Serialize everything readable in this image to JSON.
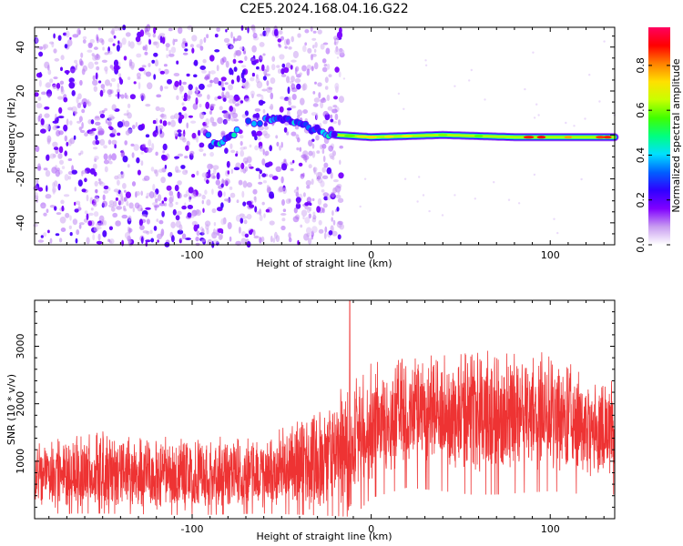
{
  "title": "C2E5.2024.168.04.16.G22",
  "chart_data": [
    {
      "type": "heatmap",
      "xlabel": "Height of straight line (km)",
      "ylabel": "Frequency (Hz)",
      "xlim": [
        -188,
        136
      ],
      "ylim": [
        -50,
        49
      ],
      "x_ticks": [
        -100,
        0,
        100
      ],
      "y_ticks": [
        -40,
        -20,
        0,
        20,
        40
      ],
      "colorbar": {
        "label": "Normalized spectral amplitude",
        "range": [
          0,
          0.97
        ],
        "ticks": [
          "0.0",
          "0.2",
          "0.4",
          "0.6",
          "0.8"
        ],
        "colormap": [
          "#ffffff",
          "#c89cf0",
          "#8000ff",
          "#3000ff",
          "#0060ff",
          "#00e0ff",
          "#00ff80",
          "#40ff00",
          "#c8ff00",
          "#ffe000",
          "#ff8000",
          "#ff0000",
          "#ff0060"
        ]
      },
      "features": {
        "noise_region_km": [
          -188,
          -20
        ],
        "signal_track": [
          {
            "x": -90,
            "f": -6
          },
          {
            "x": -70,
            "f": 5
          },
          {
            "x": -50,
            "f": 8
          },
          {
            "x": -35,
            "f": 3
          },
          {
            "x": -20,
            "f": 0
          },
          {
            "x": 0,
            "f": -1
          },
          {
            "x": 40,
            "f": 0
          },
          {
            "x": 80,
            "f": -1
          },
          {
            "x": 136,
            "f": -1
          }
        ]
      }
    },
    {
      "type": "line",
      "xlabel": "Height of straight line (km)",
      "ylabel": "SNR (10 * v/v)",
      "xlim": [
        -188,
        136
      ],
      "ylim": [
        0,
        3800
      ],
      "x_ticks": [
        -100,
        0,
        100
      ],
      "y_ticks": [
        1000,
        2000,
        3000
      ],
      "color": "#ee3333",
      "envelope": [
        {
          "x": -188,
          "lo": 150,
          "hi": 1300
        },
        {
          "x": -150,
          "lo": 150,
          "hi": 1450
        },
        {
          "x": -100,
          "lo": 100,
          "hi": 1350
        },
        {
          "x": -60,
          "lo": 150,
          "hi": 1400
        },
        {
          "x": -30,
          "lo": 100,
          "hi": 1900
        },
        {
          "x": -10,
          "lo": 50,
          "hi": 2300
        },
        {
          "x": 0,
          "lo": 600,
          "hi": 2600
        },
        {
          "x": 20,
          "lo": 900,
          "hi": 2900
        },
        {
          "x": 40,
          "lo": 800,
          "hi": 2700
        },
        {
          "x": 55,
          "lo": 700,
          "hi": 3100
        },
        {
          "x": 70,
          "lo": 700,
          "hi": 2700
        },
        {
          "x": 100,
          "lo": 800,
          "hi": 2900
        },
        {
          "x": 120,
          "lo": 700,
          "hi": 2400
        },
        {
          "x": 136,
          "lo": 700,
          "hi": 2300
        }
      ],
      "spike": {
        "x": -12,
        "y": 3800
      }
    }
  ]
}
